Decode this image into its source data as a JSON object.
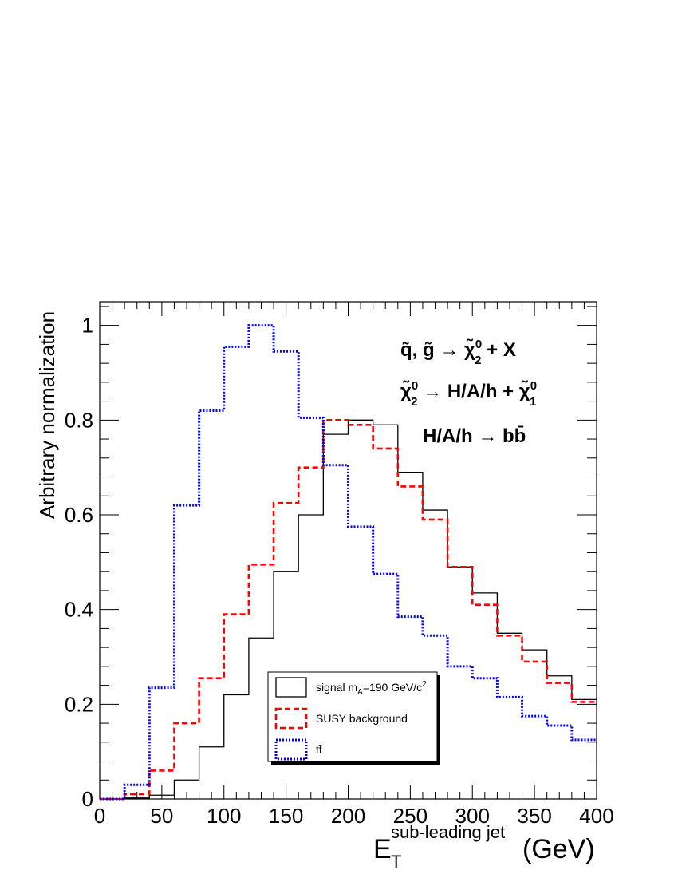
{
  "chart_data": {
    "type": "line",
    "style": "step-histogram",
    "x_bin_edges": [
      0,
      20,
      40,
      60,
      80,
      100,
      120,
      140,
      160,
      180,
      200,
      220,
      240,
      260,
      280,
      300,
      320,
      340,
      360,
      380,
      400
    ],
    "xlim": [
      0,
      400
    ],
    "ylim": [
      0,
      1.05
    ],
    "x_ticks": [
      "0",
      "50",
      "100",
      "150",
      "200",
      "250",
      "300",
      "350",
      "400"
    ],
    "y_ticks": [
      "0",
      "0.2",
      "0.4",
      "0.6",
      "0.8",
      "1"
    ],
    "ylabel": "Arbitrary normalization",
    "xlabel": {
      "main": "E",
      "subscript": "T",
      "superscript": "sub-leading jet",
      "unit": "(GeV)"
    },
    "series": [
      {
        "name": "signal m_A=190 GeV/c^2",
        "color": "#000000",
        "dash": "solid",
        "values": [
          0.0,
          0.002,
          0.008,
          0.04,
          0.11,
          0.22,
          0.34,
          0.48,
          0.6,
          0.77,
          0.8,
          0.79,
          0.69,
          0.61,
          0.49,
          0.435,
          0.35,
          0.315,
          0.26,
          0.21
        ]
      },
      {
        "name": "SUSY background",
        "color": "#ff0000",
        "dash": "dashed",
        "values": [
          0.0,
          0.01,
          0.06,
          0.16,
          0.255,
          0.39,
          0.495,
          0.625,
          0.7,
          0.8,
          0.79,
          0.74,
          0.66,
          0.59,
          0.49,
          0.41,
          0.345,
          0.29,
          0.245,
          0.205
        ]
      },
      {
        "name": "tt̄",
        "color": "#0000ff",
        "dash": "dotted",
        "values": [
          0.0,
          0.03,
          0.235,
          0.62,
          0.82,
          0.955,
          1.0,
          0.945,
          0.805,
          0.705,
          0.575,
          0.475,
          0.385,
          0.345,
          0.28,
          0.255,
          0.215,
          0.175,
          0.155,
          0.125
        ]
      }
    ],
    "legend": {
      "placement": "bottom-center",
      "entries": [
        {
          "base": "signal m",
          "sub": "A",
          "mid": "=190 GeV/c",
          "sup": "2",
          "color": "#000000",
          "dash": "solid"
        },
        {
          "base": "SUSY background",
          "sub": "",
          "mid": "",
          "sup": "",
          "color": "#ff0000",
          "dash": "dashed"
        },
        {
          "base": "tt̄",
          "sub": "",
          "mid": "",
          "sup": "",
          "color": "#0000ff",
          "dash": "dotted"
        }
      ]
    },
    "annotations": {
      "line1": {
        "pre": "q̃, g̃ → χ̃",
        "sup": "0",
        "sub": "2",
        "post": " + X"
      },
      "line2": {
        "pre": "χ̃",
        "sup1": "0",
        "sub1": "2",
        "mid": " → H/A/h + χ̃",
        "sup2": "0",
        "sub2": "1"
      },
      "line3": {
        "text": "H/A/h → bb̄"
      }
    },
    "grid": false
  }
}
